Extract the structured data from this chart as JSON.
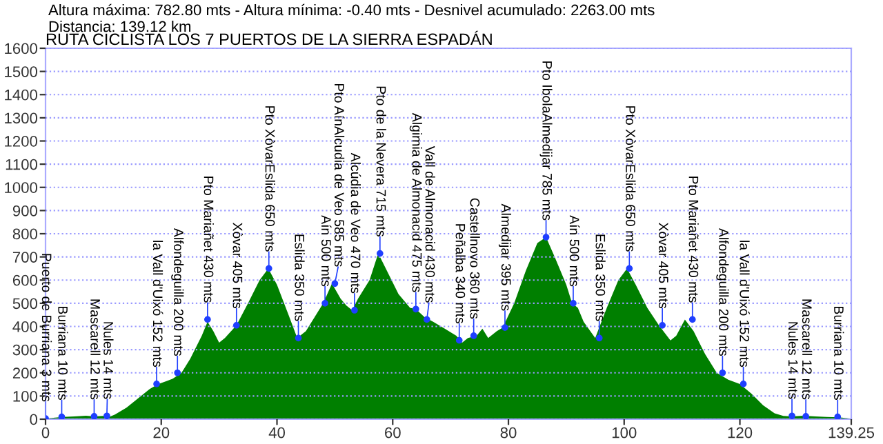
{
  "chart_data": {
    "type": "area",
    "title": "RUTA CICLISTA LOS 7 PUERTOS DE LA SIERRA ESPADÁN",
    "annotations": [
      "Altura máxima: 782.80 mts - Altura mínima: -0.40 mts - Desnivel acumulado: 2263.00 mts",
      "Distancia: 139.12 km",
      {
        "text": "Puerto de Burriana 3 mts",
        "x": 0,
        "y": 3
      },
      {
        "text": "Burriana 10 mts",
        "x": 2.8,
        "y": 10
      },
      {
        "text": "Mascarell 12 mts",
        "x": 8.4,
        "y": 12
      },
      {
        "text": "Nules 14 mts",
        "x": 10.6,
        "y": 14
      },
      {
        "text": "la Vall d'Uixó 152 mts",
        "x": 19.2,
        "y": 152
      },
      {
        "text": "Alfondeguilla 200 mts",
        "x": 22.8,
        "y": 200
      },
      {
        "text": "Pto Mariañet 430 mts",
        "x": 28,
        "y": 430
      },
      {
        "text": "Xòvar 405 mts",
        "x": 33,
        "y": 405
      },
      {
        "text": "Pto XòvarEslida 650 mts",
        "x": 38.6,
        "y": 650
      },
      {
        "text": "Eslida 350 mts",
        "x": 43.7,
        "y": 350
      },
      {
        "text": "Aín 500 mts",
        "x": 48.3,
        "y": 500
      },
      {
        "text": "Pto AínAlcudia de Veo 585 mts",
        "x": 50,
        "y": 585
      },
      {
        "text": "Alcúdia de Veo 470 mts",
        "x": 53.4,
        "y": 470
      },
      {
        "text": "Pto de la Nevera 715 mts",
        "x": 57.8,
        "y": 715
      },
      {
        "text": "Algimia de Almonacid 475 mts",
        "x": 64,
        "y": 475
      },
      {
        "text": "Vall de Almonacid 430 mts",
        "x": 65.9,
        "y": 430
      },
      {
        "text": "Peñalba 340 mts",
        "x": 71.5,
        "y": 340
      },
      {
        "text": "Castellnovo 360 mts",
        "x": 74,
        "y": 360
      },
      {
        "text": "Almedijar 395 mts",
        "x": 79.4,
        "y": 395
      },
      {
        "text": "Pto IbolaAlmedijar 785 mts",
        "x": 86.5,
        "y": 785
      },
      {
        "text": "Aín 500 mts",
        "x": 91.2,
        "y": 500
      },
      {
        "text": "Eslida 350 mts",
        "x": 95.7,
        "y": 350
      },
      {
        "text": "Pto XòvarEslida 650 mts",
        "x": 100.9,
        "y": 650
      },
      {
        "text": "Xòvar 405 mts",
        "x": 106.6,
        "y": 405
      },
      {
        "text": "Pto Mariañet 430 mts",
        "x": 111.8,
        "y": 430
      },
      {
        "text": "Alfondeguilla 200 mts",
        "x": 117,
        "y": 200
      },
      {
        "text": "la Vall d'Uixó 152 mts",
        "x": 120.6,
        "y": 152
      },
      {
        "text": "Nules 14 mts",
        "x": 129,
        "y": 14
      },
      {
        "text": "Mascarell 12 mts",
        "x": 131.4,
        "y": 12
      },
      {
        "text": "Burriana 10 mts",
        "x": 136.9,
        "y": 10
      }
    ],
    "x": [
      0,
      3,
      5,
      7,
      8.5,
      10,
      11,
      12,
      14,
      16,
      18,
      19.5,
      21,
      22,
      23.5,
      25,
      27,
      28,
      29,
      30,
      31,
      33,
      35,
      37,
      38.5,
      40,
      42,
      43.5,
      45,
      46.5,
      48,
      49.5,
      51,
      52,
      53,
      54,
      56,
      57.5,
      59,
      61,
      63,
      64,
      65.5,
      67,
      69,
      71,
      72,
      73,
      74.5,
      75.5,
      76.5,
      78,
      79,
      81,
      83,
      85,
      86.5,
      88,
      90,
      91,
      92,
      93,
      95,
      97,
      99,
      100.5,
      102,
      104,
      106,
      108,
      109,
      110.5,
      112,
      114,
      116,
      118,
      120,
      122,
      124,
      126,
      127.5,
      129,
      131,
      133,
      135,
      137,
      139.12
    ],
    "series": [
      {
        "color": "#007f00",
        "values": [
          3,
          10,
          12,
          15,
          12,
          14,
          10,
          20,
          50,
          90,
          130,
          152,
          165,
          175,
          200,
          260,
          360,
          420,
          380,
          330,
          350,
          405,
          500,
          600,
          650,
          580,
          450,
          350,
          380,
          440,
          500,
          585,
          520,
          490,
          470,
          520,
          600,
          715,
          640,
          540,
          480,
          475,
          440,
          420,
          390,
          360,
          330,
          350,
          360,
          390,
          350,
          380,
          395,
          500,
          640,
          760,
          785,
          700,
          580,
          500,
          480,
          420,
          350,
          480,
          600,
          650,
          580,
          480,
          405,
          340,
          360,
          430,
          380,
          280,
          200,
          170,
          152,
          110,
          60,
          25,
          14,
          12,
          15,
          12,
          10,
          8,
          3
        ]
      }
    ],
    "xlim": [
      0,
      139.25
    ],
    "xticks": [
      0,
      20,
      40,
      60,
      80,
      100,
      120,
      {
        "value": 139.25,
        "label": "139.25"
      }
    ],
    "ylim": [
      0,
      1600
    ],
    "yticks": [
      0,
      100,
      200,
      300,
      400,
      500,
      600,
      700,
      800,
      900,
      1000,
      1100,
      1200,
      1300,
      1400,
      1500,
      1600
    ],
    "grid": "y"
  }
}
